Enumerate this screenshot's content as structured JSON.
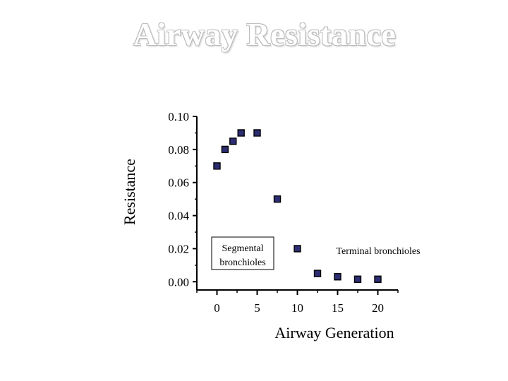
{
  "title": "Airway Resistance",
  "chart_data": {
    "type": "scatter",
    "title": "Airway Resistance",
    "xlabel": "Airway Generation",
    "ylabel": "Resistance",
    "xlim": [
      -2.5,
      22.5
    ],
    "ylim": [
      -0.005,
      0.1
    ],
    "x_ticks": [
      0,
      5,
      10,
      15,
      20
    ],
    "x_tick_labels": [
      "0",
      "5",
      "10",
      "15",
      "20"
    ],
    "y_ticks": [
      0.0,
      0.02,
      0.04,
      0.06,
      0.08,
      0.1
    ],
    "y_tick_labels": [
      "0.00",
      "0.02",
      "0.04",
      "0.06",
      "0.08",
      "0.10"
    ],
    "grid": false,
    "points": [
      {
        "x": 0,
        "y": 0.07
      },
      {
        "x": 1,
        "y": 0.08
      },
      {
        "x": 2,
        "y": 0.085
      },
      {
        "x": 3,
        "y": 0.09
      },
      {
        "x": 5,
        "y": 0.09
      },
      {
        "x": 7.5,
        "y": 0.05
      },
      {
        "x": 10,
        "y": 0.02
      },
      {
        "x": 12.5,
        "y": 0.005
      },
      {
        "x": 15,
        "y": 0.003
      },
      {
        "x": 17.5,
        "y": 0.0015
      },
      {
        "x": 20,
        "y": 0.0015
      }
    ],
    "annotations": [
      {
        "text_lines": [
          "Segmental",
          "bronchioles"
        ],
        "boxed": true
      },
      {
        "text_lines": [
          "Terminal bronchioles"
        ],
        "boxed": false
      }
    ],
    "marker_color": "#2d2d73"
  }
}
